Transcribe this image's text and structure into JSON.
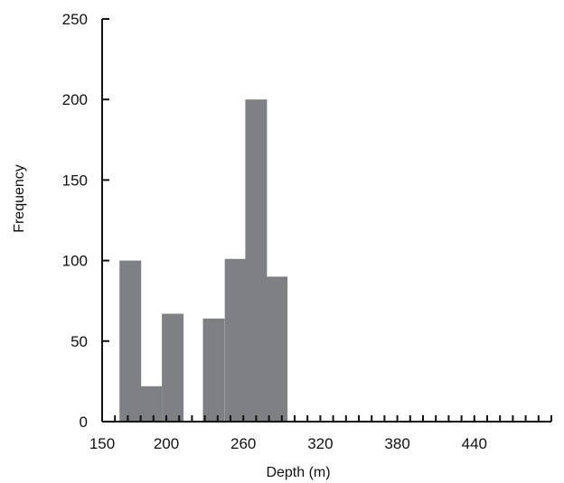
{
  "chart_data": {
    "type": "bar",
    "title": "",
    "xlabel": "Depth (m)",
    "ylabel": "Frequency",
    "xlim": [
      150,
      500
    ],
    "ylim": [
      0,
      250
    ],
    "x_tick_labels": [
      "150",
      "200",
      "260",
      "320",
      "380",
      "440"
    ],
    "x_tick_values": [
      150,
      200,
      260,
      320,
      380,
      440
    ],
    "y_tick_labels": [
      "0",
      "50",
      "100",
      "150",
      "200",
      "250"
    ],
    "y_tick_values": [
      0,
      50,
      100,
      150,
      200,
      250
    ],
    "bar_color": "#7f8084",
    "bars": [
      {
        "x": 172,
        "value": 100
      },
      {
        "x": 188,
        "value": 22
      },
      {
        "x": 205,
        "value": 67
      },
      {
        "x": 237,
        "value": 64
      },
      {
        "x": 254,
        "value": 101
      },
      {
        "x": 270,
        "value": 200
      },
      {
        "x": 286,
        "value": 90
      }
    ],
    "grid": false,
    "legend": "none"
  }
}
